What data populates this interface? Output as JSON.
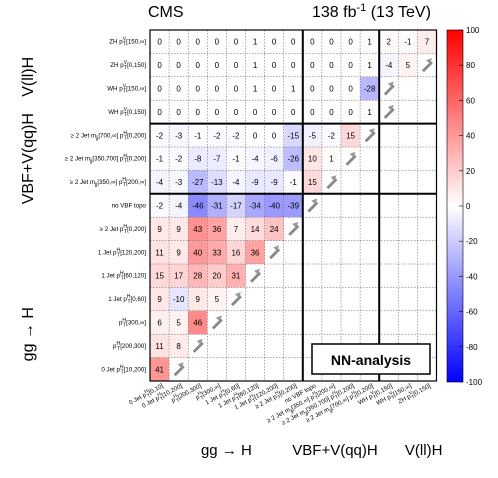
{
  "header": {
    "experiment": "CMS",
    "lumi": "138 fb",
    "lumi_exp": "-1",
    "energy": " (13 TeV)"
  },
  "legend_box": {
    "text": "NN-analysis"
  },
  "chart_data": {
    "type": "heatmap",
    "title": "",
    "colorscale": {
      "min": -100,
      "max": 100,
      "ticks": [
        -100,
        -80,
        -60,
        -40,
        -20,
        0,
        20,
        40,
        60,
        80,
        100
      ],
      "low": "#0000ff",
      "mid": "#ffffff",
      "high": "#ff0000"
    },
    "categories": [
      {
        "main": "0 Jet p",
        "sup": "H",
        "sub": "T",
        "range": "[10,200]"
      },
      {
        "main": "p",
        "sup": "H",
        "sub": "T",
        "range": "[200,300]"
      },
      {
        "main": "p",
        "sup": "H",
        "sub": "T",
        "range": "[300,∞]"
      },
      {
        "main": "1 Jet p",
        "sup": "H",
        "sub": "T",
        "range": "[0,60]"
      },
      {
        "main": "1 Jet p",
        "sup": "H",
        "sub": "T",
        "range": "[60,120]"
      },
      {
        "main": "1 Jet p",
        "sup": "H",
        "sub": "T",
        "range": "[120,200]"
      },
      {
        "main": "≥ 2 Jet p",
        "sup": "H",
        "sub": "T",
        "range": "[0,200]"
      },
      {
        "main": "no VBF topo",
        "sup": "",
        "sub": "",
        "range": ""
      },
      {
        "main": "≥ 2 Jet m",
        "sup": "",
        "sub": "jj",
        "range": "[350,∞] p",
        "sup2": "H",
        "sub2": "T",
        "range2": "[200,∞]"
      },
      {
        "main": "≥ 2 Jet m",
        "sup": "",
        "sub": "jj",
        "range": "[350,700] p",
        "sup2": "H",
        "sub2": "T",
        "range2": "[0,200]"
      },
      {
        "main": "≥ 2 Jet m",
        "sup": "",
        "sub": "jj",
        "range": "[700,∞] p",
        "sup2": "H",
        "sub2": "T",
        "range2": "[0,200]"
      },
      {
        "main": "WH p",
        "sup": "V",
        "sub": "T",
        "range": "[0,150]"
      },
      {
        "main": "WH p",
        "sup": "V",
        "sub": "T",
        "range": "[150,∞]"
      },
      {
        "main": "ZH p",
        "sup": "V",
        "sub": "T",
        "range": "[0,150]"
      },
      {
        "main": "ZH p",
        "sup": "V",
        "sub": "T",
        "range": "[150,∞]"
      }
    ],
    "x_category_labels": [
      {
        "main": "0 Jet p",
        "sup": "H",
        "sub": "T",
        "range": "[0,10]"
      },
      {
        "main": "0 Jet p",
        "sup": "H",
        "sub": "T",
        "range": "[10,200]"
      },
      {
        "main": "p",
        "sup": "H",
        "sub": "T",
        "range": "[200,300]"
      },
      {
        "main": "p",
        "sup": "H",
        "sub": "T",
        "range": "[300,∞]"
      },
      {
        "main": "1 Jet p",
        "sup": "H",
        "sub": "T",
        "range": "[0,60]"
      },
      {
        "main": "1 Jet p",
        "sup": "H",
        "sub": "T",
        "range": "[60,120]"
      },
      {
        "main": "1 Jet p",
        "sup": "H",
        "sub": "T",
        "range": "[120,200]"
      },
      {
        "main": "≥ 2 Jet p",
        "sup": "H",
        "sub": "T",
        "range": "[0,200]"
      },
      {
        "main": "no VBF topo",
        "sup": "",
        "sub": "",
        "range": ""
      },
      {
        "main": "≥ 2 Jet m",
        "sup": "",
        "sub": "jj",
        "range": "[350,∞] p",
        "sup2": "H",
        "sub2": "T",
        "range2": "[200,∞]"
      },
      {
        "main": "≥ 2 Jet m",
        "sup": "",
        "sub": "jj",
        "range": "[350,700] p",
        "sup2": "H",
        "sub2": "T",
        "range2": "[0,200]"
      },
      {
        "main": "≥ 2 Jet m",
        "sup": "",
        "sub": "jj",
        "range": "[700,∞] p",
        "sup2": "H",
        "sub2": "T",
        "range2": "[0,200]"
      },
      {
        "main": "WH p",
        "sup": "V",
        "sub": "T",
        "range": "[0,150]"
      },
      {
        "main": "WH p",
        "sup": "V",
        "sub": "T",
        "range": "[150,∞]"
      },
      {
        "main": "ZH p",
        "sup": "V",
        "sub": "T",
        "range": "[0,150]"
      }
    ],
    "cells": [
      [
        41,
        null,
        null,
        null,
        null,
        null,
        null,
        null,
        null,
        null,
        null,
        null,
        null,
        null,
        null
      ],
      [
        11,
        8,
        null,
        null,
        null,
        null,
        null,
        null,
        null,
        null,
        null,
        null,
        null,
        null,
        null
      ],
      [
        6,
        5,
        46,
        null,
        null,
        null,
        null,
        null,
        null,
        null,
        null,
        null,
        null,
        null,
        null
      ],
      [
        9,
        -10,
        9,
        5,
        null,
        null,
        null,
        null,
        null,
        null,
        null,
        null,
        null,
        null,
        null
      ],
      [
        15,
        17,
        28,
        20,
        31,
        null,
        null,
        null,
        null,
        null,
        null,
        null,
        null,
        null,
        null
      ],
      [
        11,
        9,
        40,
        33,
        16,
        36,
        null,
        null,
        null,
        null,
        null,
        null,
        null,
        null,
        null
      ],
      [
        9,
        9,
        43,
        36,
        7,
        14,
        24,
        null,
        null,
        null,
        null,
        null,
        null,
        null,
        null
      ],
      [
        -2,
        -4,
        -46,
        -31,
        -17,
        -34,
        -40,
        -39,
        null,
        null,
        null,
        null,
        null,
        null,
        null
      ],
      [
        -4,
        -3,
        -27,
        -13,
        -4,
        -9,
        -9,
        -1,
        15,
        null,
        null,
        null,
        null,
        null,
        null
      ],
      [
        -1,
        -2,
        -8,
        -7,
        -1,
        -4,
        -6,
        -26,
        10,
        1,
        null,
        null,
        null,
        null,
        null
      ],
      [
        -2,
        -3,
        -1,
        -2,
        -2,
        0,
        0,
        -15,
        -5,
        -2,
        15,
        null,
        null,
        null,
        null
      ],
      [
        0,
        0,
        0,
        0,
        0,
        0,
        0,
        0,
        0,
        0,
        0,
        1,
        null,
        null,
        null
      ],
      [
        0,
        0,
        0,
        0,
        0,
        1,
        0,
        1,
        0,
        0,
        0,
        -28,
        null,
        null,
        null
      ],
      [
        0,
        0,
        0,
        0,
        0,
        1,
        0,
        0,
        0,
        0,
        0,
        1,
        -4,
        5,
        null
      ],
      [
        0,
        0,
        0,
        0,
        0,
        1,
        0,
        0,
        0,
        0,
        0,
        1,
        2,
        -1,
        7
      ]
    ],
    "y_group_labels": [
      "gg → H",
      "VBF+V(qq)H",
      "V(ll)H"
    ],
    "x_group_labels": [
      "gg → H",
      "VBF+V(qq)H",
      "V(ll)H"
    ]
  }
}
